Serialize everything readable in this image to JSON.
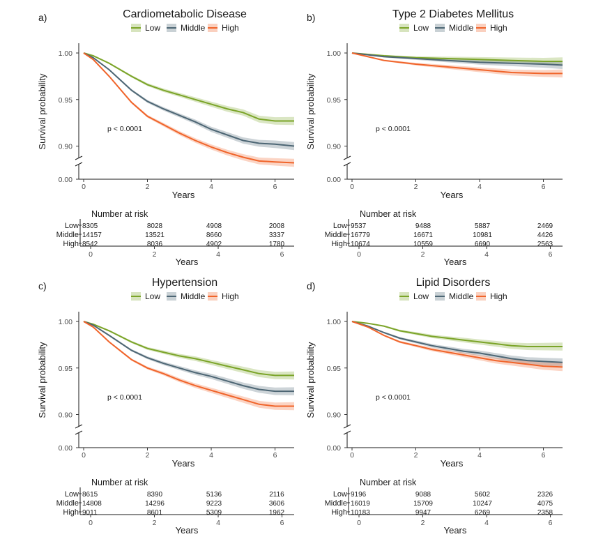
{
  "legend_labels": [
    "Low",
    "Middle",
    "High"
  ],
  "colors": {
    "Low": "#7ba428",
    "Middle": "#4d6674",
    "High": "#f0642a"
  },
  "chart_data": [
    {
      "type": "line",
      "panel": "a)",
      "title": "Cardiometabolic Disease",
      "xlabel": "Years",
      "ylabel": "Survival probability",
      "xlim": [
        0,
        6.6
      ],
      "xticks": [
        "0",
        "2",
        "4",
        "6"
      ],
      "yticks": [
        "1.00",
        "0.95",
        "0.90",
        "0.00"
      ],
      "axis_break": true,
      "pvalue": "p < 0.0001",
      "series": [
        {
          "name": "Low",
          "x": [
            0,
            0.3,
            0.8,
            1.5,
            2.0,
            2.5,
            3.0,
            3.5,
            4.0,
            4.5,
            5.0,
            5.5,
            6.0,
            6.6
          ],
          "y": [
            1.0,
            0.997,
            0.989,
            0.975,
            0.966,
            0.96,
            0.955,
            0.95,
            0.945,
            0.94,
            0.936,
            0.929,
            0.927,
            0.927
          ]
        },
        {
          "name": "Middle",
          "x": [
            0,
            0.3,
            0.8,
            1.5,
            2.0,
            2.5,
            3.0,
            3.5,
            4.0,
            4.5,
            5.0,
            5.5,
            6.0,
            6.6
          ],
          "y": [
            1.0,
            0.995,
            0.982,
            0.96,
            0.948,
            0.94,
            0.933,
            0.926,
            0.918,
            0.912,
            0.906,
            0.903,
            0.902,
            0.9
          ]
        },
        {
          "name": "High",
          "x": [
            0,
            0.3,
            0.8,
            1.5,
            2.0,
            2.5,
            3.0,
            3.5,
            4.0,
            4.5,
            5.0,
            5.5,
            6.0,
            6.6
          ],
          "y": [
            1.0,
            0.993,
            0.975,
            0.947,
            0.932,
            0.923,
            0.914,
            0.906,
            0.899,
            0.893,
            0.888,
            0.884,
            0.883,
            0.882
          ]
        }
      ],
      "risk_table": {
        "title": "Number at risk",
        "xlabel": "Years",
        "rows": [
          {
            "group": "Low",
            "values": [
              "8305",
              "8028",
              "4908",
              "2008"
            ]
          },
          {
            "group": "Middle",
            "values": [
              "14157",
              "13521",
              "8660",
              "3337"
            ]
          },
          {
            "group": "High",
            "values": [
              "8542",
              "8036",
              "4902",
              "1780"
            ]
          }
        ]
      }
    },
    {
      "type": "line",
      "panel": "b)",
      "title": "Type 2 Diabetes Mellitus",
      "xlabel": "Years",
      "ylabel": "Survival probability",
      "xlim": [
        0,
        6.6
      ],
      "xticks": [
        "0",
        "2",
        "4",
        "6"
      ],
      "yticks": [
        "1.00",
        "0.95",
        "0.90",
        "0.00"
      ],
      "axis_break": true,
      "pvalue": "p < 0.0001",
      "series": [
        {
          "name": "Low",
          "x": [
            0,
            1,
            2,
            3,
            4,
            5,
            6,
            6.6
          ],
          "y": [
            1.0,
            0.997,
            0.995,
            0.994,
            0.993,
            0.992,
            0.991,
            0.991
          ]
        },
        {
          "name": "Middle",
          "x": [
            0,
            1,
            2,
            3,
            4,
            5,
            6,
            6.6
          ],
          "y": [
            1.0,
            0.996,
            0.994,
            0.992,
            0.99,
            0.989,
            0.988,
            0.987
          ]
        },
        {
          "name": "High",
          "x": [
            0,
            1,
            2,
            3,
            4,
            5,
            6,
            6.6
          ],
          "y": [
            1.0,
            0.992,
            0.988,
            0.985,
            0.982,
            0.979,
            0.978,
            0.978
          ]
        }
      ],
      "risk_table": {
        "title": "Number at risk",
        "xlabel": "Years",
        "rows": [
          {
            "group": "Low",
            "values": [
              "9537",
              "9488",
              "5887",
              "2469"
            ]
          },
          {
            "group": "Middle",
            "values": [
              "16779",
              "16671",
              "10981",
              "4426"
            ]
          },
          {
            "group": "High",
            "values": [
              "10674",
              "10559",
              "6690",
              "2563"
            ]
          }
        ]
      }
    },
    {
      "type": "line",
      "panel": "c)",
      "title": "Hypertension",
      "xlabel": "Years",
      "ylabel": "Survival probability",
      "xlim": [
        0,
        6.6
      ],
      "xticks": [
        "0",
        "2",
        "4",
        "6"
      ],
      "yticks": [
        "1.00",
        "0.95",
        "0.90",
        "0.00"
      ],
      "axis_break": true,
      "pvalue": "p < 0.0001",
      "series": [
        {
          "name": "Low",
          "x": [
            0,
            0.3,
            0.8,
            1.5,
            2.0,
            2.5,
            3.0,
            3.5,
            4.0,
            4.5,
            5.0,
            5.5,
            6.0,
            6.6
          ],
          "y": [
            1.0,
            0.997,
            0.99,
            0.978,
            0.971,
            0.967,
            0.963,
            0.96,
            0.956,
            0.952,
            0.948,
            0.944,
            0.942,
            0.942
          ]
        },
        {
          "name": "Middle",
          "x": [
            0,
            0.3,
            0.8,
            1.5,
            2.0,
            2.5,
            3.0,
            3.5,
            4.0,
            4.5,
            5.0,
            5.5,
            6.0,
            6.6
          ],
          "y": [
            1.0,
            0.996,
            0.985,
            0.969,
            0.961,
            0.955,
            0.95,
            0.945,
            0.941,
            0.936,
            0.931,
            0.927,
            0.925,
            0.925
          ]
        },
        {
          "name": "High",
          "x": [
            0,
            0.3,
            0.8,
            1.5,
            2.0,
            2.5,
            3.0,
            3.5,
            4.0,
            4.5,
            5.0,
            5.5,
            6.0,
            6.6
          ],
          "y": [
            1.0,
            0.994,
            0.978,
            0.959,
            0.95,
            0.944,
            0.937,
            0.931,
            0.926,
            0.921,
            0.916,
            0.911,
            0.909,
            0.909
          ]
        }
      ],
      "risk_table": {
        "title": "Number at risk",
        "xlabel": "Years",
        "rows": [
          {
            "group": "Low",
            "values": [
              "8615",
              "8390",
              "5136",
              "2116"
            ]
          },
          {
            "group": "Middle",
            "values": [
              "14808",
              "14296",
              "9223",
              "3606"
            ]
          },
          {
            "group": "High",
            "values": [
              "9011",
              "8601",
              "5309",
              "1962"
            ]
          }
        ]
      }
    },
    {
      "type": "line",
      "panel": "d)",
      "title": "Lipid Disorders",
      "xlabel": "Years",
      "ylabel": "Survival probability",
      "xlim": [
        0,
        6.6
      ],
      "xticks": [
        "0",
        "2",
        "4",
        "6"
      ],
      "yticks": [
        "1.00",
        "0.95",
        "0.90",
        "0.00"
      ],
      "axis_break": true,
      "pvalue": "p < 0.0001",
      "series": [
        {
          "name": "Low",
          "x": [
            0,
            0.5,
            1,
            1.5,
            2,
            2.5,
            3,
            3.5,
            4,
            4.5,
            5,
            5.5,
            6,
            6.6
          ],
          "y": [
            1.0,
            0.998,
            0.995,
            0.99,
            0.987,
            0.984,
            0.982,
            0.98,
            0.978,
            0.976,
            0.974,
            0.973,
            0.973,
            0.973
          ]
        },
        {
          "name": "Middle",
          "x": [
            0,
            0.5,
            1,
            1.5,
            2,
            2.5,
            3,
            3.5,
            4,
            4.5,
            5,
            5.5,
            6,
            6.6
          ],
          "y": [
            1.0,
            0.995,
            0.988,
            0.982,
            0.978,
            0.974,
            0.971,
            0.968,
            0.966,
            0.963,
            0.96,
            0.958,
            0.957,
            0.956
          ]
        },
        {
          "name": "High",
          "x": [
            0,
            0.5,
            1,
            1.5,
            2,
            2.5,
            3,
            3.5,
            4,
            4.5,
            5,
            5.5,
            6,
            6.6
          ],
          "y": [
            1.0,
            0.994,
            0.985,
            0.978,
            0.974,
            0.97,
            0.967,
            0.964,
            0.961,
            0.958,
            0.956,
            0.954,
            0.952,
            0.951
          ]
        }
      ],
      "risk_table": {
        "title": "Number at risk",
        "xlabel": "Years",
        "rows": [
          {
            "group": "Low",
            "values": [
              "9196",
              "9088",
              "5602",
              "2326"
            ]
          },
          {
            "group": "Middle",
            "values": [
              "16019",
              "15709",
              "10247",
              "4075"
            ]
          },
          {
            "group": "High",
            "values": [
              "10183",
              "9947",
              "6269",
              "2358"
            ]
          }
        ]
      }
    }
  ]
}
